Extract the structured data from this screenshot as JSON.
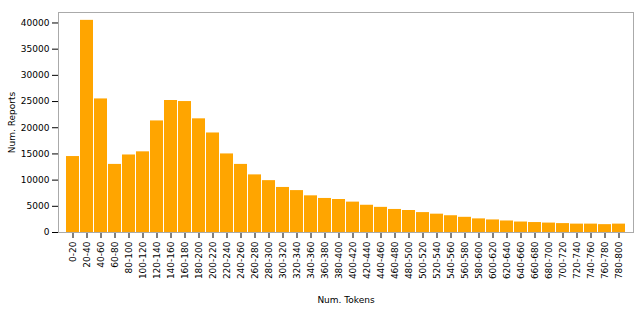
{
  "chart_data": {
    "type": "bar",
    "xlabel": "Num. Tokens",
    "ylabel": "Num. Reports",
    "categories": [
      "0-20",
      "20-40",
      "40-60",
      "60-80",
      "80-100",
      "100-120",
      "120-140",
      "140-160",
      "160-180",
      "180-200",
      "200-220",
      "220-240",
      "240-260",
      "260-280",
      "280-300",
      "300-320",
      "320-340",
      "340-360",
      "360-380",
      "380-400",
      "400-420",
      "420-440",
      "440-460",
      "460-480",
      "480-500",
      "500-520",
      "520-540",
      "540-560",
      "560-580",
      "580-600",
      "600-620",
      "620-640",
      "640-660",
      "660-680",
      "680-700",
      "700-720",
      "720-740",
      "740-760",
      "760-780",
      "780-800"
    ],
    "values": [
      14500,
      40500,
      25500,
      13000,
      14800,
      15400,
      21300,
      25200,
      25000,
      21700,
      19000,
      15000,
      13000,
      11000,
      9900,
      8600,
      8000,
      7000,
      6500,
      6300,
      5800,
      5200,
      4800,
      4400,
      4200,
      3800,
      3500,
      3200,
      2900,
      2600,
      2400,
      2200,
      2000,
      1900,
      1800,
      1700,
      1600,
      1600,
      1500,
      1600
    ],
    "color": "#FFA500",
    "ylim": [
      0,
      42000
    ],
    "yticks": [
      0,
      5000,
      10000,
      15000,
      20000,
      25000,
      30000,
      35000,
      40000
    ],
    "grid": false
  }
}
